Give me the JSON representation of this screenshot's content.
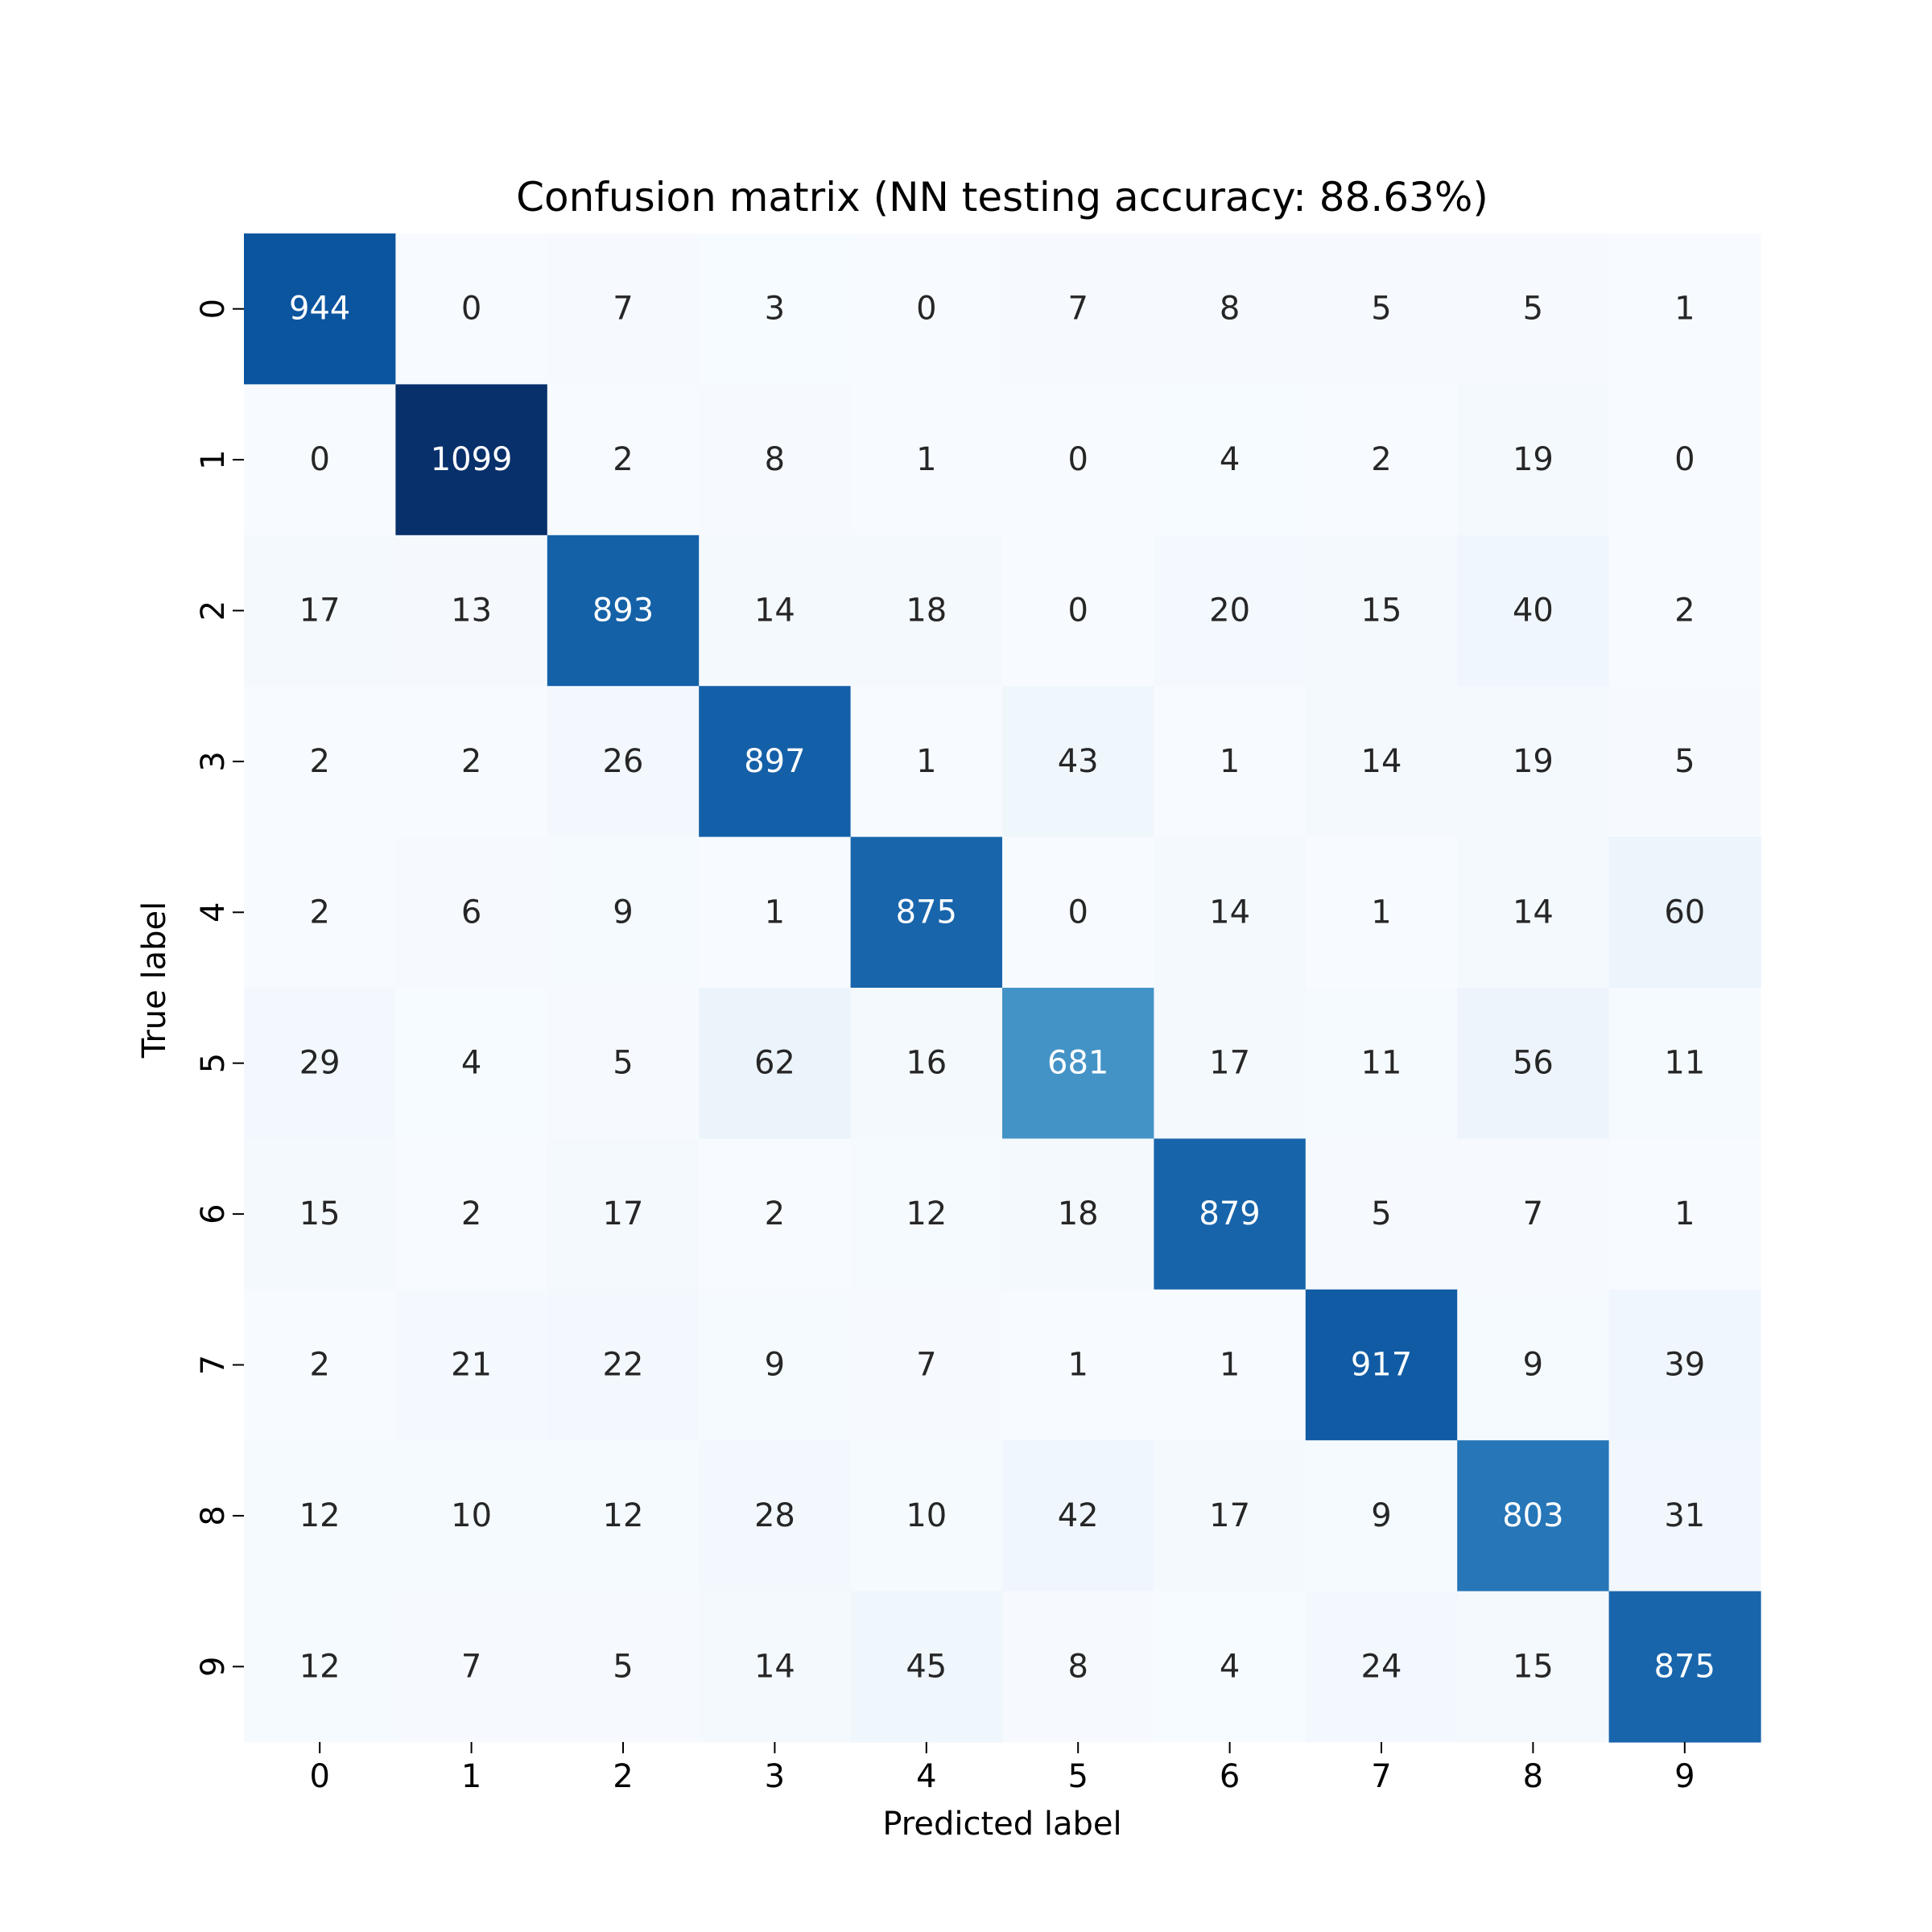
{
  "chart_data": {
    "type": "heatmap",
    "title": "Confusion matrix (NN testing accuracy: 88.63%)",
    "xlabel": "Predicted label",
    "ylabel": "True label",
    "x_categories": [
      "0",
      "1",
      "2",
      "3",
      "4",
      "5",
      "6",
      "7",
      "8",
      "9"
    ],
    "y_categories": [
      "0",
      "1",
      "2",
      "3",
      "4",
      "5",
      "6",
      "7",
      "8",
      "9"
    ],
    "values": [
      [
        944,
        0,
        7,
        3,
        0,
        7,
        8,
        5,
        5,
        1
      ],
      [
        0,
        1099,
        2,
        8,
        1,
        0,
        4,
        2,
        19,
        0
      ],
      [
        17,
        13,
        893,
        14,
        18,
        0,
        20,
        15,
        40,
        2
      ],
      [
        2,
        2,
        26,
        897,
        1,
        43,
        1,
        14,
        19,
        5
      ],
      [
        2,
        6,
        9,
        1,
        875,
        0,
        14,
        1,
        14,
        60
      ],
      [
        29,
        4,
        5,
        62,
        16,
        681,
        17,
        11,
        56,
        11
      ],
      [
        15,
        2,
        17,
        2,
        12,
        18,
        879,
        5,
        7,
        1
      ],
      [
        2,
        21,
        22,
        9,
        7,
        1,
        1,
        917,
        9,
        39
      ],
      [
        12,
        10,
        12,
        28,
        10,
        42,
        17,
        9,
        803,
        31
      ],
      [
        12,
        7,
        5,
        14,
        45,
        8,
        4,
        24,
        15,
        875
      ]
    ],
    "colormap": "Blues",
    "value_range": [
      0,
      1099
    ],
    "colorbar": false,
    "grid": false
  }
}
